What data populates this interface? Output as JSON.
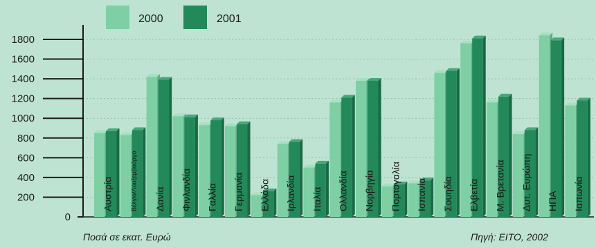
{
  "chart_data": {
    "type": "bar",
    "title": "",
    "xlabel": "",
    "ylabel": "",
    "ylim": [
      0,
      1900
    ],
    "yticks": [
      0,
      200,
      400,
      600,
      800,
      1000,
      1200,
      1400,
      1600,
      1800
    ],
    "ytick_labels": [
      "0",
      "200",
      "400",
      "600",
      "800",
      "1000",
      "1200",
      "1400",
      "1600",
      "1800"
    ],
    "grid": "horizontal dotted",
    "legend_position": "top-left",
    "categories": [
      "Αυστρία",
      "Βέλγιο/Λουξεμβούργο",
      "Δανία",
      "Φινλανδία",
      "Γαλλία",
      "Γερμανία",
      "Ελλάδα",
      "Ιρλανδία",
      "Ιταλία",
      "Ολλανδία",
      "Νορβηγία",
      "Πορτογαλία",
      "Ισπανία",
      "Σουηδία",
      "Ελβετία",
      "Μ. Βρετανία",
      "Δυτ. Ευρώπη",
      "ΗΠΑ",
      "Ιαπωνία"
    ],
    "series": [
      {
        "name": "2000",
        "color": "#7ecfa3",
        "values": [
          850,
          830,
          1420,
          1020,
          930,
          920,
          220,
          740,
          500,
          1160,
          1380,
          310,
          340,
          1460,
          1760,
          1160,
          840,
          1840,
          1130
        ]
      },
      {
        "name": "2001",
        "color": "#23895a",
        "values": [
          870,
          880,
          1390,
          1010,
          980,
          940,
          260,
          760,
          540,
          1210,
          1380,
          330,
          370,
          1480,
          1810,
          1220,
          880,
          1790,
          1180
        ]
      }
    ]
  },
  "footer": {
    "unit_note": "Ποσά σε εκατ. Ευρώ",
    "source": "Πηγή: EITO, 2002"
  }
}
